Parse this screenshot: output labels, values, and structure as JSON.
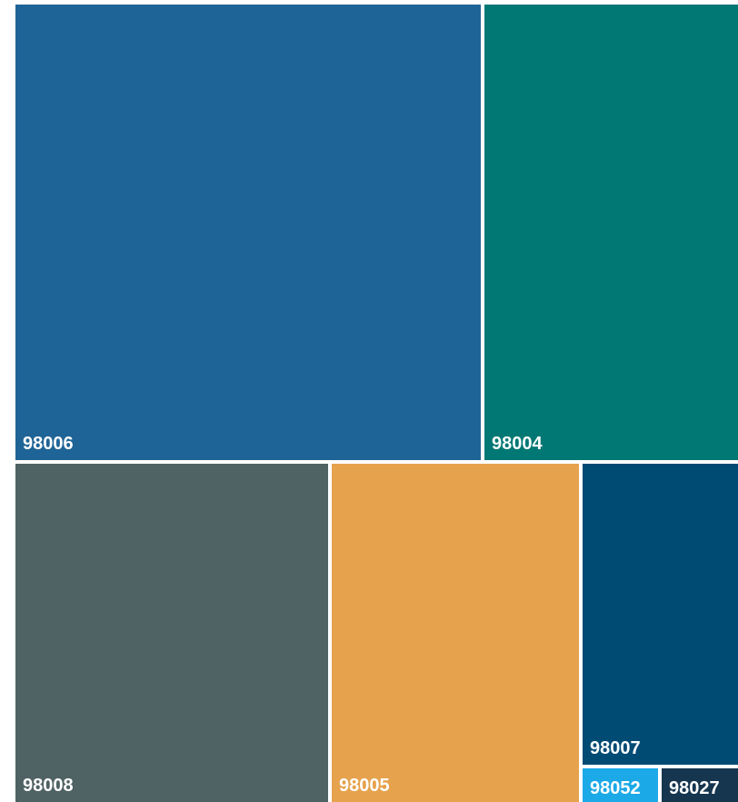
{
  "chart_data": {
    "type": "treemap",
    "title": "",
    "tiles": [
      {
        "label": "98006",
        "color": "#1F6496"
      },
      {
        "label": "98004",
        "color": "#017873"
      },
      {
        "label": "98008",
        "color": "#4F6264"
      },
      {
        "label": "98005",
        "color": "#E6A24D"
      },
      {
        "label": "98007",
        "color": "#004B74"
      },
      {
        "label": "98052",
        "color": "#1BA9E7"
      },
      {
        "label": "98027",
        "color": "#16354F"
      }
    ]
  }
}
